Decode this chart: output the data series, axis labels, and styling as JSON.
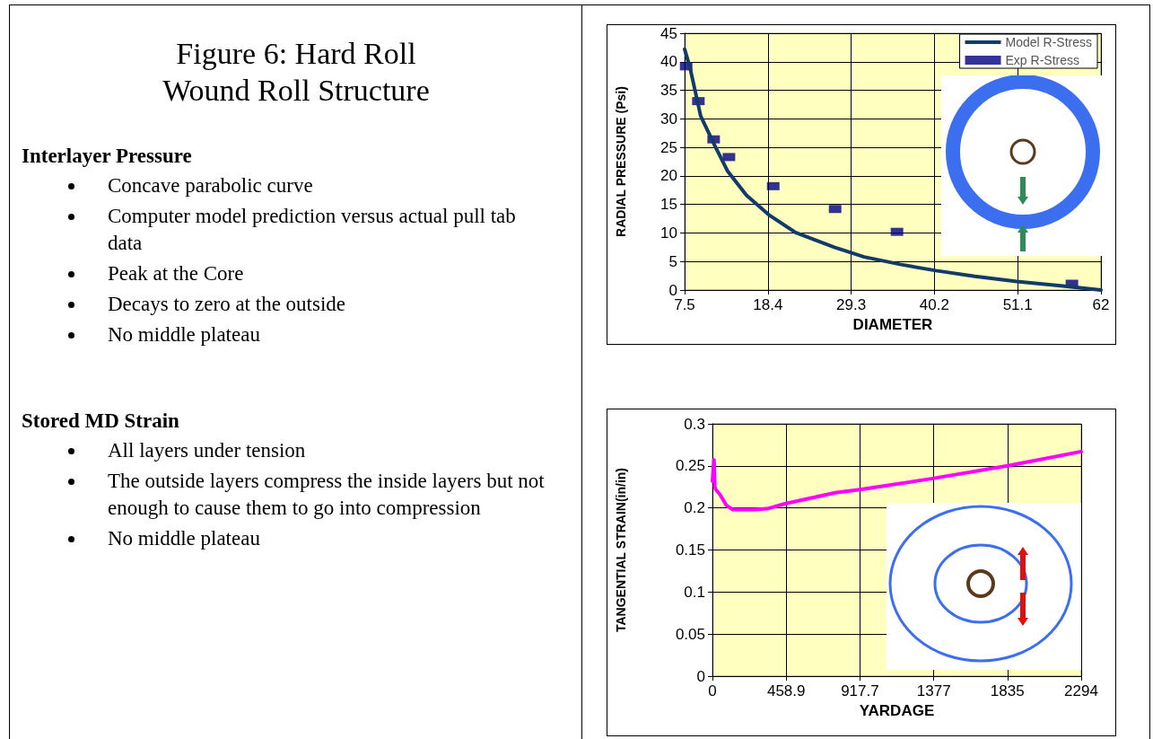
{
  "chart_data": [
    {
      "type": "other",
      "title": "Figure 6: Hard Roll\nWound Roll Structure"
    },
    {
      "type": "other",
      "title": "Interlayer Pressure",
      "annotations": [
        "Concave parabolic curve",
        "Computer model prediction versus actual pull tab data",
        "Peak at the Core",
        "Decays to zero at the outside",
        "No middle plateau"
      ]
    },
    {
      "type": "other",
      "title": "Stored MD Strain",
      "annotations": [
        "All layers under tension",
        "The outside layers compress the inside layers but not enough to cause them to go into compression",
        "No middle plateau"
      ]
    },
    {
      "type": "line",
      "xlabel": "DIAMETER",
      "ylabel": "RADIAL PRESSURE (Psi)",
      "xlim": [
        7.5,
        62
      ],
      "xticks": [
        7.5,
        18.4,
        29.3,
        40.2,
        51.1,
        62
      ],
      "ylim": [
        0,
        45
      ],
      "yticks": [
        0,
        5,
        10,
        15,
        20,
        25,
        30,
        35,
        40,
        45
      ],
      "grid": true,
      "legend": "top right",
      "series": [
        {
          "name": "Model R-Stress",
          "type": "line",
          "marker": "none",
          "line_style": "solid",
          "color": "#123a6b",
          "x": [
            7.5,
            8.2,
            9.6,
            11.3,
            13.1,
            15.6,
            18.5,
            22,
            27.1,
            31,
            35.7,
            40.4,
            45.5,
            51,
            57,
            62
          ],
          "values": [
            42.2,
            39,
            30.5,
            25.7,
            20.9,
            16.6,
            13.2,
            10.1,
            7.5,
            5.8,
            4.5,
            3.4,
            2.4,
            1.5,
            0.7,
            0
          ]
        },
        {
          "name": "Exp R-Stress",
          "type": "scatter",
          "marker": "square",
          "color": "#000080",
          "x": [
            7.7,
            9.3,
            11.3,
            13.3,
            19.1,
            27.2,
            35.3,
            58.2
          ],
          "values": [
            39.2,
            33.1,
            26.4,
            23.3,
            18.2,
            14.2,
            10.2,
            1.1
          ]
        }
      ]
    },
    {
      "type": "line",
      "xlabel": "YARDAGE",
      "ylabel": "TANGENTIAL STRAIN(in/in)",
      "xlim": [
        0,
        2294
      ],
      "xticks": [
        0,
        458.9,
        917.7,
        1377,
        1835,
        2294
      ],
      "ylim": [
        0,
        0.3
      ],
      "yticks": [
        0,
        0.05,
        0.1,
        0.15,
        0.2,
        0.25,
        0.3
      ],
      "grid": true,
      "marker": "none",
      "line_style": "solid",
      "series": [
        {
          "color": "#ff00ff",
          "x": [
            0,
            10,
            15,
            20,
            47,
            87,
            127,
            259,
            340,
            451,
            764,
            926,
            1370,
            1835,
            2294
          ],
          "values": [
            0.232,
            0.257,
            0.225,
            0.222,
            0.216,
            0.203,
            0.198,
            0.198,
            0.199,
            0.205,
            0.218,
            0.222,
            0.235,
            0.25,
            0.267
          ]
        }
      ]
    }
  ]
}
